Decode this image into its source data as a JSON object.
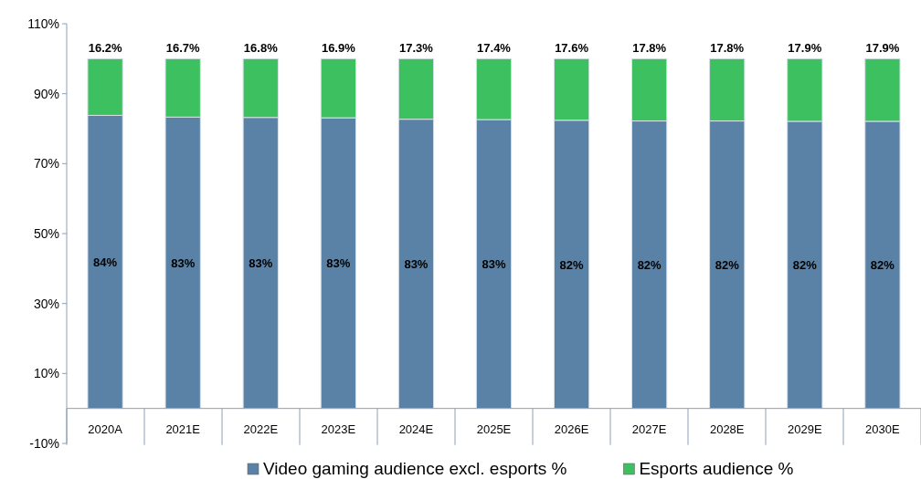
{
  "chart_data": {
    "type": "bar",
    "stacked": true,
    "categories": [
      "2020A",
      "2021E",
      "2022E",
      "2023E",
      "2024E",
      "2025E",
      "2026E",
      "2027E",
      "2028E",
      "2029E",
      "2030E"
    ],
    "series": [
      {
        "name": "Video gaming audience excl. esports %",
        "color": "#5a82a6",
        "values": [
          83.8,
          83.3,
          83.2,
          83.1,
          82.7,
          82.6,
          82.4,
          82.2,
          82.2,
          82.1,
          82.1
        ],
        "value_labels": [
          "84%",
          "83%",
          "83%",
          "83%",
          "83%",
          "83%",
          "82%",
          "82%",
          "82%",
          "82%",
          "82%"
        ]
      },
      {
        "name": "Esports audience %",
        "color": "#3cc060",
        "values": [
          16.2,
          16.7,
          16.8,
          16.9,
          17.3,
          17.4,
          17.6,
          17.8,
          17.8,
          17.9,
          17.9
        ],
        "value_labels": [
          "16.2%",
          "16.7%",
          "16.8%",
          "16.9%",
          "17.3%",
          "17.4%",
          "17.6%",
          "17.8%",
          "17.8%",
          "17.9%",
          "17.9%"
        ]
      }
    ],
    "ylim": [
      -10,
      110
    ],
    "yticks": [
      {
        "value": -10,
        "label": "-10%"
      },
      {
        "value": 10,
        "label": "10%"
      },
      {
        "value": 30,
        "label": "30%"
      },
      {
        "value": 50,
        "label": "50%"
      },
      {
        "value": 70,
        "label": "70%"
      },
      {
        "value": 90,
        "label": "90%"
      },
      {
        "value": 110,
        "label": "110%"
      }
    ],
    "grid": false,
    "legend": "bottom"
  }
}
